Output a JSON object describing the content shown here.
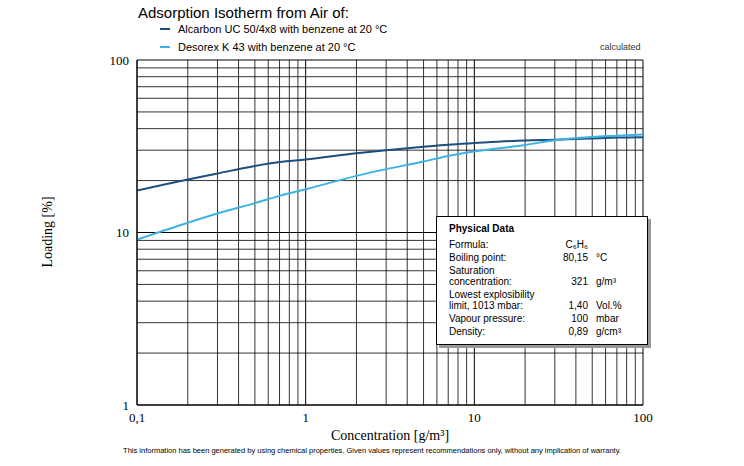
{
  "chart_data": {
    "type": "line",
    "title": "Adsorption Isotherm from Air of:",
    "note": "calculated",
    "footnote": "This information has been generated by using chemical properties. Given values represent recommendations only, without any implication of warranty.",
    "x_label": "Concentration [g/m³]",
    "y_label": "Loading [%]",
    "log": true,
    "grid": true,
    "legend": "top",
    "x": [
      0.1,
      0.2,
      0.3,
      0.5,
      0.7,
      1,
      2,
      3,
      5,
      7,
      10,
      20,
      30,
      50,
      70,
      100
    ],
    "series": [
      {
        "name": "Alcarbon UC 50/4x8 with benzene at 20 °C",
        "color": "#1b4f7c",
        "values": [
          17.5,
          20.3,
          22,
          24.3,
          25.6,
          26.5,
          28.8,
          30,
          31.4,
          32.3,
          33,
          34.2,
          34.5,
          35.1,
          35.5,
          35.7
        ]
      },
      {
        "name": "Desorex K 43 with benzene at 20 °C",
        "color": "#3fb2e4",
        "values": [
          9.1,
          11.4,
          12.9,
          14.8,
          16.3,
          17.8,
          21.3,
          23.3,
          25.8,
          27.8,
          29.5,
          32.2,
          34.3,
          35.8,
          36.4,
          37
        ]
      }
    ],
    "xlim": [
      0.1,
      100
    ],
    "xticks": [
      {
        "value": 0.1,
        "label": "0,1"
      },
      1,
      10,
      100
    ],
    "x_minor_ticks": [
      0.2,
      0.3,
      0.4,
      0.5,
      0.6,
      0.7,
      0.8,
      0.9,
      2,
      3,
      4,
      5,
      6,
      7,
      8,
      9,
      20,
      30,
      40,
      50,
      60,
      70,
      80,
      90
    ],
    "ylim": [
      1,
      100
    ],
    "yticks": [
      1,
      10,
      100
    ],
    "y_minor_ticks": [
      2,
      3,
      4,
      5,
      6,
      7,
      8,
      9,
      20,
      30,
      40,
      50,
      60,
      70,
      80,
      90
    ],
    "physical_data": {
      "title": "Physical Data",
      "rows": [
        [
          "Formula:",
          "C₆H₆"
        ],
        [
          "Boiling point:",
          "80,15",
          "°C"
        ],
        [
          "Saturation concentration:",
          "321",
          "g/m³"
        ],
        [
          "Lowest explosibility limit, 1013 mbar:",
          "1,40",
          "Vol.%"
        ],
        [
          "Vapour pressure:",
          "100",
          "mbar"
        ],
        [
          "Density:",
          "0,89",
          "g/cm³"
        ]
      ]
    }
  }
}
